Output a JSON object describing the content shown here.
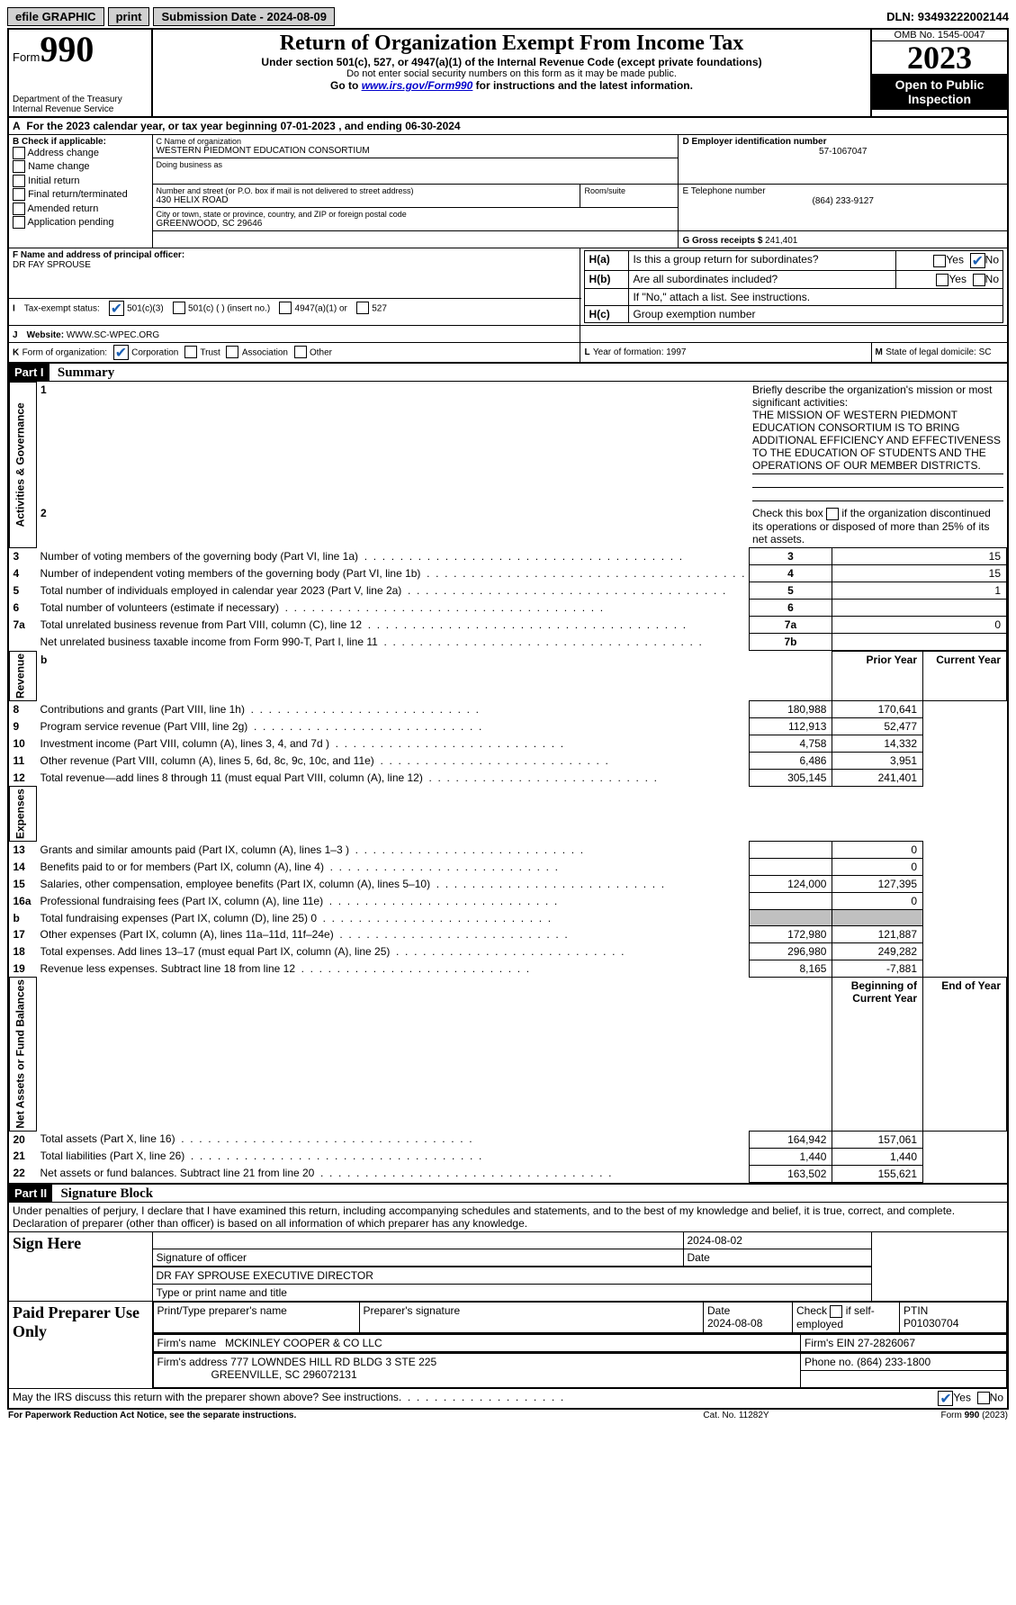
{
  "topbar": {
    "efile": "efile GRAPHIC",
    "print": "print",
    "submission_label": "Submission Date - ",
    "submission_date": "2024-08-09",
    "dln_label": "DLN: ",
    "dln": "93493222002144"
  },
  "header": {
    "form_word": "Form",
    "form_number": "990",
    "dept": "Department of the Treasury\nInternal Revenue Service",
    "title": "Return of Organization Exempt From Income Tax",
    "subtitle1": "Under section 501(c), 527, or 4947(a)(1) of the Internal Revenue Code (except private foundations)",
    "subtitle2": "Do not enter social security numbers on this form as it may be made public.",
    "subtitle3_pre": "Go to ",
    "subtitle3_link": "www.irs.gov/Form990",
    "subtitle3_post": " for instructions and the latest information.",
    "omb": "OMB No. 1545-0047",
    "year": "2023",
    "inspection": "Open to Public Inspection"
  },
  "period": {
    "line_a_pre": "For the 2023 calendar year, or tax year beginning ",
    "begin": "07-01-2023",
    "mid": " , and ending ",
    "end": "06-30-2024"
  },
  "box_b": {
    "title": "B Check if applicable:",
    "items": [
      "Address change",
      "Name change",
      "Initial return",
      "Final return/terminated",
      "Amended return",
      "Application pending"
    ]
  },
  "box_c": {
    "label_name": "C Name of organization",
    "name": "WESTERN PIEDMONT EDUCATION CONSORTIUM",
    "dba_label": "Doing business as",
    "street_label": "Number and street (or P.O. box if mail is not delivered to street address)",
    "room_label": "Room/suite",
    "street": "430 HELIX ROAD",
    "city_label": "City or town, state or province, country, and ZIP or foreign postal code",
    "city": "GREENWOOD, SC  29646"
  },
  "box_d": {
    "label": "D Employer identification number",
    "value": "57-1067047"
  },
  "box_e": {
    "label": "E Telephone number",
    "value": "(864) 233-9127"
  },
  "box_g": {
    "label": "G Gross receipts $ ",
    "value": "241,401"
  },
  "box_f": {
    "label": "F  Name and address of principal officer:",
    "value": "DR FAY SPROUSE"
  },
  "box_h": {
    "a_label": "H(a)",
    "a_text": "Is this a group return for subordinates?",
    "b_label": "H(b)",
    "b_text": "Are all subordinates included?",
    "b_note": "If \"No,\" attach a list. See instructions.",
    "c_label": "H(c)",
    "c_text": "Group exemption number ",
    "yes": "Yes",
    "no": "No"
  },
  "box_i": {
    "label": "I",
    "text": "Tax-exempt status:",
    "opt1": "501(c)(3)",
    "opt2": "501(c) (   ) (insert no.)",
    "opt3": "4947(a)(1) or",
    "opt4": "527"
  },
  "box_j": {
    "label": "J",
    "text": "Website: ",
    "value": "WWW.SC-WPEC.ORG"
  },
  "box_k": {
    "label": "K",
    "text": "Form of organization:",
    "opts": [
      "Corporation",
      "Trust",
      "Association",
      "Other"
    ]
  },
  "box_l": {
    "label": "L",
    "text": "Year of formation: ",
    "value": "1997"
  },
  "box_m": {
    "label": "M",
    "text": "State of legal domicile: ",
    "value": "SC"
  },
  "part1": {
    "tag": "Part I",
    "title": "Summary"
  },
  "summary": {
    "l1_label": "1",
    "l1_text": "Briefly describe the organization's mission or most significant activities:",
    "l1_value": "THE MISSION OF WESTERN PIEDMONT EDUCATION CONSORTIUM IS TO BRING ADDITIONAL EFFICIENCY AND EFFECTIVENESS TO THE EDUCATION OF STUDENTS AND THE OPERATIONS OF OUR MEMBER DISTRICTS.",
    "l2_label": "2",
    "l2_text": "Check this box ",
    "l2_text2": " if the organization discontinued its operations or disposed of more than 25% of its net assets.",
    "governance_label": "Activities & Governance",
    "revenue_label": "Revenue",
    "expenses_label": "Expenses",
    "netassets_label": "Net Assets or Fund Balances",
    "rows_gov": [
      {
        "n": "3",
        "t": "Number of voting members of the governing body (Part VI, line 1a)",
        "k": "3",
        "v": "15"
      },
      {
        "n": "4",
        "t": "Number of independent voting members of the governing body (Part VI, line 1b)",
        "k": "4",
        "v": "15"
      },
      {
        "n": "5",
        "t": "Total number of individuals employed in calendar year 2023 (Part V, line 2a)",
        "k": "5",
        "v": "1"
      },
      {
        "n": "6",
        "t": "Total number of volunteers (estimate if necessary)",
        "k": "6",
        "v": ""
      },
      {
        "n": "7a",
        "t": "Total unrelated business revenue from Part VIII, column (C), line 12",
        "k": "7a",
        "v": "0"
      },
      {
        "n": "",
        "t": "Net unrelated business taxable income from Form 990-T, Part I, line 11",
        "k": "7b",
        "v": ""
      }
    ],
    "hdr_prior": "Prior Year",
    "hdr_current": "Current Year",
    "rows_rev": [
      {
        "n": "8",
        "t": "Contributions and grants (Part VIII, line 1h)",
        "p": "180,988",
        "c": "170,641"
      },
      {
        "n": "9",
        "t": "Program service revenue (Part VIII, line 2g)",
        "p": "112,913",
        "c": "52,477"
      },
      {
        "n": "10",
        "t": "Investment income (Part VIII, column (A), lines 3, 4, and 7d )",
        "p": "4,758",
        "c": "14,332"
      },
      {
        "n": "11",
        "t": "Other revenue (Part VIII, column (A), lines 5, 6d, 8c, 9c, 10c, and 11e)",
        "p": "6,486",
        "c": "3,951"
      },
      {
        "n": "12",
        "t": "Total revenue—add lines 8 through 11 (must equal Part VIII, column (A), line 12)",
        "p": "305,145",
        "c": "241,401"
      }
    ],
    "rows_exp": [
      {
        "n": "13",
        "t": "Grants and similar amounts paid (Part IX, column (A), lines 1–3 )",
        "p": "",
        "c": "0"
      },
      {
        "n": "14",
        "t": "Benefits paid to or for members (Part IX, column (A), line 4)",
        "p": "",
        "c": "0"
      },
      {
        "n": "15",
        "t": "Salaries, other compensation, employee benefits (Part IX, column (A), lines 5–10)",
        "p": "124,000",
        "c": "127,395"
      },
      {
        "n": "16a",
        "t": "Professional fundraising fees (Part IX, column (A), line 11e)",
        "p": "",
        "c": "0"
      },
      {
        "n": "b",
        "t": "Total fundraising expenses (Part IX, column (D), line 25) 0",
        "p": "GREY",
        "c": "GREY"
      },
      {
        "n": "17",
        "t": "Other expenses (Part IX, column (A), lines 11a–11d, 11f–24e)",
        "p": "172,980",
        "c": "121,887"
      },
      {
        "n": "18",
        "t": "Total expenses. Add lines 13–17 (must equal Part IX, column (A), line 25)",
        "p": "296,980",
        "c": "249,282"
      },
      {
        "n": "19",
        "t": "Revenue less expenses. Subtract line 18 from line 12",
        "p": "8,165",
        "c": "-7,881"
      }
    ],
    "hdr_begin": "Beginning of Current Year",
    "hdr_end": "End of Year",
    "rows_net": [
      {
        "n": "20",
        "t": "Total assets (Part X, line 16)",
        "p": "164,942",
        "c": "157,061"
      },
      {
        "n": "21",
        "t": "Total liabilities (Part X, line 26)",
        "p": "1,440",
        "c": "1,440"
      },
      {
        "n": "22",
        "t": "Net assets or fund balances. Subtract line 21 from line 20",
        "p": "163,502",
        "c": "155,621"
      }
    ]
  },
  "part2": {
    "tag": "Part II",
    "title": "Signature Block",
    "declaration": "Under penalties of perjury, I declare that I have examined this return, including accompanying schedules and statements, and to the best of my knowledge and belief, it is true, correct, and complete. Declaration of preparer (other than officer) is based on all information of which preparer has any knowledge."
  },
  "sign": {
    "sign_here": "Sign Here",
    "sig_officer_label": "Signature of officer",
    "officer_name": "DR FAY SPROUSE  EXECUTIVE DIRECTOR",
    "type_label": "Type or print name and title",
    "date_label": "Date",
    "date_value": "2024-08-02"
  },
  "preparer": {
    "title": "Paid Preparer Use Only",
    "print_label": "Print/Type preparer's name",
    "sig_label": "Preparer's signature",
    "date_label": "Date",
    "date_value": "2024-08-08",
    "check_label": "Check         if self-employed",
    "ptin_label": "PTIN",
    "ptin_value": "P01030704",
    "firm_name_label": "Firm's name   ",
    "firm_name": "MCKINLEY COOPER & CO LLC",
    "firm_ein_label": "Firm's EIN  ",
    "firm_ein": "27-2826067",
    "firm_addr_label": "Firm's address ",
    "firm_addr1": "777 LOWNDES HILL RD BLDG 3 STE 225",
    "firm_addr2": "GREENVILLE, SC  296072131",
    "phone_label": "Phone no. ",
    "phone": "(864) 233-1800"
  },
  "footer": {
    "discuss": "May the IRS discuss this return with the preparer shown above? See instructions.",
    "yes": "Yes",
    "no": "No",
    "paperwork": "For Paperwork Reduction Act Notice, see the separate instructions.",
    "cat": "Cat. No. 11282Y",
    "form": "Form 990 (2023)"
  }
}
